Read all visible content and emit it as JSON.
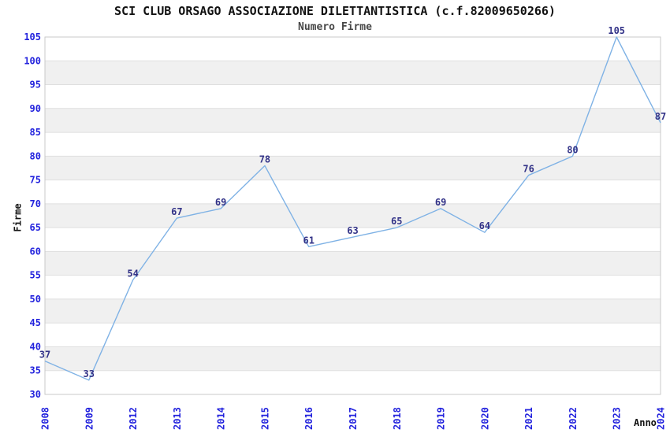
{
  "chart_data": {
    "type": "line",
    "title": "SCI CLUB ORSAGO ASSOCIAZIONE DILETTANTISTICA (c.f.82009650266)",
    "subtitle": "Numero Firme",
    "xlabel": "Anno",
    "ylabel": "Firme",
    "categories": [
      "2008",
      "2009",
      "2012",
      "2013",
      "2014",
      "2015",
      "2016",
      "2017",
      "2018",
      "2019",
      "2020",
      "2021",
      "2022",
      "2023",
      "2024"
    ],
    "values": [
      37,
      33,
      54,
      67,
      69,
      78,
      61,
      63,
      65,
      69,
      64,
      76,
      80,
      105,
      87
    ],
    "ylim": [
      30,
      105
    ],
    "ytick_step": 5,
    "grid": "horizontal-bands",
    "legend": "none",
    "colors": {
      "line": "#7FB2E5",
      "tick_label": "#2222DD",
      "value_label": "#333388",
      "band": "#F0F0F0",
      "gridline": "#DFDFDF",
      "plot_border": "#C9C9C9",
      "title": "#111111",
      "subtitle": "#474747",
      "axis_title": "#111111",
      "background": "#FFFFFF"
    }
  }
}
